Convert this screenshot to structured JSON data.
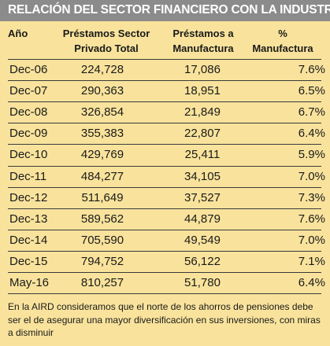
{
  "title": "RELACIÓN DEL SECTOR FINANCIERO CON LA INDUSTRIA",
  "headers": [
    {
      "line1": "Año",
      "line2": ""
    },
    {
      "line1": "Préstamos Sector",
      "line2": "Privado Total"
    },
    {
      "line1": "Préstamos a",
      "line2": "Manufactura"
    },
    {
      "line1": "%",
      "line2": "Manufactura"
    }
  ],
  "rows": [
    {
      "period": "Dec-06",
      "total": "224,728",
      "manufactura": "17,086",
      "pct": "7.6%"
    },
    {
      "period": "Dec-07",
      "total": "290,363",
      "manufactura": "18,951",
      "pct": "6.5%"
    },
    {
      "period": "Dec-08",
      "total": "326,854",
      "manufactura": "21,849",
      "pct": "6.7%"
    },
    {
      "period": "Dec-09",
      "total": "355,383",
      "manufactura": "22,807",
      "pct": "6.4%"
    },
    {
      "period": "Dec-10",
      "total": "429,769",
      "manufactura": "25,411",
      "pct": "5.9%"
    },
    {
      "period": "Dec-11",
      "total": "484,277",
      "manufactura": "34,105",
      "pct": "7.0%"
    },
    {
      "period": "Dec-12",
      "total": "511,649",
      "manufactura": "37,527",
      "pct": "7.3%"
    },
    {
      "period": "Dec-13",
      "total": "589,562",
      "manufactura": "44,879",
      "pct": "7.6%"
    },
    {
      "period": "Dec-14",
      "total": "705,590",
      "manufactura": "49,549",
      "pct": "7.0%"
    },
    {
      "period": "Dec-15",
      "total": "794,752",
      "manufactura": "56,122",
      "pct": "7.1%"
    },
    {
      "period": "May-16",
      "total": "810,257",
      "manufactura": "51,780",
      "pct": "6.4%"
    }
  ],
  "note": "En la AIRD consideramos que el norte de los ahorros de pensiones debe ser el de asegurar una mayor diversificación en sus inversiones, con miras a disminuir",
  "colors": {
    "background": "#f9e39c",
    "title_bar": "#8b8b8b",
    "title_text": "#ffffff"
  }
}
